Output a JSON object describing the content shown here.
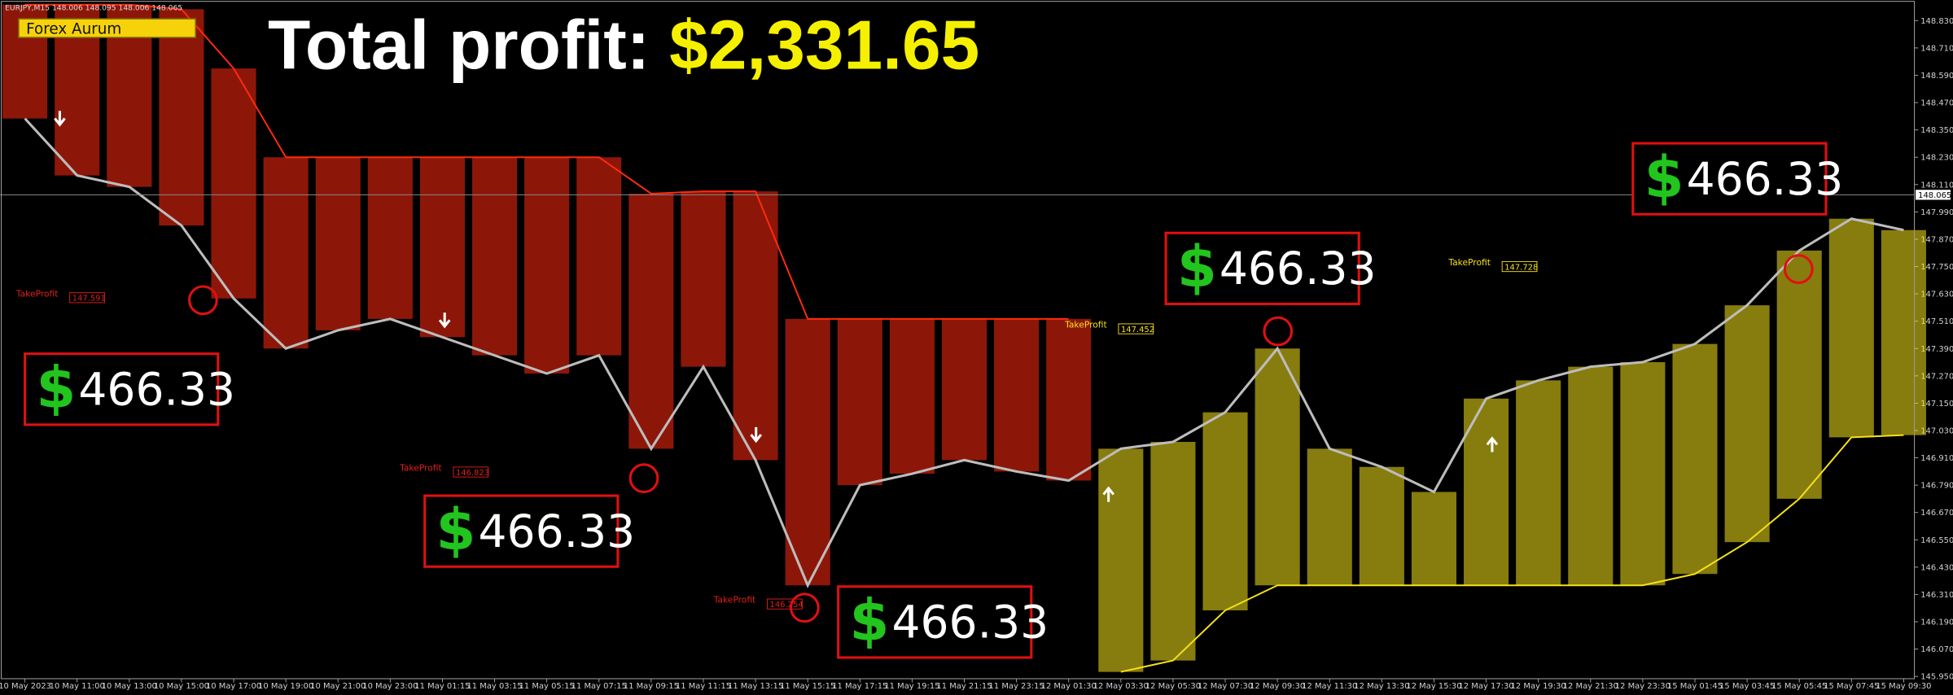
{
  "window": {
    "symbol": "EURJPY,M15  148.006 148.095 148.006 148.065",
    "indicator": "Forex Aurum"
  },
  "headline": {
    "label": "Total profit:",
    "amount": "$2,331.65"
  },
  "profits": [
    {
      "currency": "$",
      "amount": "466.33"
    },
    {
      "currency": "$",
      "amount": "466.33"
    },
    {
      "currency": "$",
      "amount": "466.33"
    },
    {
      "currency": "$",
      "amount": "466.33"
    },
    {
      "currency": "$",
      "amount": "466.33"
    }
  ],
  "take_profits": [
    {
      "label": "TakeProfit",
      "price": "147.591"
    },
    {
      "label": "TakeProfit",
      "price": "146.823"
    },
    {
      "label": "TakeProfit",
      "price": "146.254"
    },
    {
      "label": "TakeProfit",
      "price": "147.452"
    },
    {
      "label": "TakeProfit",
      "price": "147.728"
    }
  ],
  "chart_data": {
    "type": "line",
    "x": [
      "10 May 2023",
      "10 May 11:00",
      "10 May 13:00",
      "10 May 15:00",
      "10 May 17:00",
      "10 May 19:00",
      "10 May 21:00",
      "10 May 23:00",
      "11 May 01:15",
      "11 May 03:15",
      "11 May 05:15",
      "11 May 07:15",
      "11 May 09:15",
      "11 May 11:15",
      "11 May 13:15",
      "11 May 15:15",
      "11 May 17:15",
      "11 May 19:15",
      "11 May 21:15",
      "11 May 23:15",
      "12 May 01:30",
      "12 May 03:30",
      "12 May 05:30",
      "12 May 07:30",
      "12 May 09:30",
      "12 May 11:30",
      "12 May 13:30",
      "12 May 15:30",
      "12 May 17:30",
      "12 May 19:30",
      "12 May 21:30",
      "12 May 23:30",
      "15 May 01:45",
      "15 May 03:45",
      "15 May 05:45",
      "15 May 07:45",
      "15 May 09:30"
    ],
    "series": [
      {
        "color": "#bdbdbd",
        "values": [
          148.4,
          148.15,
          148.1,
          147.93,
          147.61,
          147.39,
          147.47,
          147.52,
          147.44,
          147.36,
          147.28,
          147.36,
          146.95,
          147.31,
          146.9,
          146.35,
          146.79,
          146.84,
          146.9,
          146.85,
          146.81,
          146.95,
          146.98,
          147.11,
          147.39,
          146.95,
          146.87,
          146.76,
          147.17,
          147.25,
          147.31,
          147.33,
          147.41,
          147.58,
          147.82,
          147.96,
          147.91
        ]
      },
      {
        "color": "#ff2a10",
        "values": [
          148.9,
          148.9,
          148.9,
          148.88,
          148.62,
          148.23,
          148.23,
          148.23,
          148.23,
          148.23,
          148.23,
          148.23,
          148.07,
          148.08,
          148.08,
          147.52,
          147.52,
          147.52,
          147.52,
          147.52,
          147.52,
          null,
          null,
          null,
          null,
          null,
          null,
          null,
          null,
          null,
          null,
          null,
          null,
          null,
          null,
          null,
          null
        ]
      },
      {
        "color": "#f5e11a",
        "values": [
          null,
          null,
          null,
          null,
          null,
          null,
          null,
          null,
          null,
          null,
          null,
          null,
          null,
          null,
          null,
          null,
          null,
          null,
          null,
          null,
          null,
          145.97,
          146.02,
          146.24,
          146.35,
          146.35,
          146.35,
          146.35,
          146.35,
          146.35,
          146.35,
          146.35,
          146.4,
          146.54,
          146.73,
          147.0,
          147.01
        ]
      }
    ],
    "ylim": [
      145.94,
      148.92
    ],
    "yticks": [
      {
        "value": 148.83,
        "label": "148.830"
      },
      {
        "value": 148.71,
        "label": "148.710"
      },
      {
        "value": 148.59,
        "label": "148.590"
      },
      {
        "value": 148.47,
        "label": "148.470"
      },
      {
        "value": 148.35,
        "label": "148.350"
      },
      {
        "value": 148.23,
        "label": "148.230"
      },
      {
        "value": 148.11,
        "label": "148.110"
      },
      {
        "value": 147.99,
        "label": "147.990"
      },
      {
        "value": 147.87,
        "label": "147.870"
      },
      {
        "value": 147.75,
        "label": "147.750"
      },
      {
        "value": 147.63,
        "label": "147.630"
      },
      {
        "value": 147.51,
        "label": "147.510"
      },
      {
        "value": 147.39,
        "label": "147.390"
      },
      {
        "value": 147.27,
        "label": "147.270"
      },
      {
        "value": 147.15,
        "label": "147.150"
      },
      {
        "value": 147.03,
        "label": "147.030"
      },
      {
        "value": 146.91,
        "label": "146.910"
      },
      {
        "value": 146.79,
        "label": "146.790"
      },
      {
        "value": 146.67,
        "label": "146.670"
      },
      {
        "value": 146.55,
        "label": "146.550"
      },
      {
        "value": 146.43,
        "label": "146.430"
      },
      {
        "value": 146.31,
        "label": "146.310"
      },
      {
        "value": 146.19,
        "label": "146.190"
      },
      {
        "value": 146.07,
        "label": "146.070"
      },
      {
        "value": 145.95,
        "label": "145.950"
      }
    ],
    "current_price": 148.065
  }
}
